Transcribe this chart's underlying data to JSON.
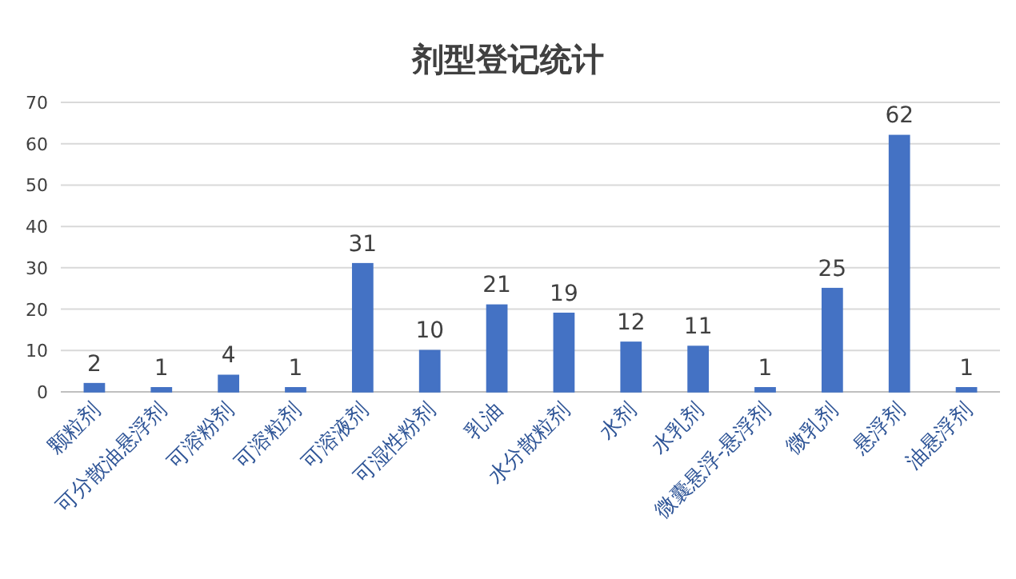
{
  "chart_data": {
    "type": "bar",
    "title": "剂型登记统计",
    "categories": [
      "颗粒剂",
      "可分散油悬浮剂",
      "可溶粉剂",
      "可溶粒剂",
      "可溶液剂",
      "可湿性粉剂",
      "乳油",
      "水分散粒剂",
      "水剂",
      "水乳剂",
      "微囊悬浮-悬浮剂",
      "微乳剂",
      "悬浮剂",
      "油悬浮剂"
    ],
    "values": [
      2,
      1,
      4,
      1,
      31,
      10,
      21,
      19,
      12,
      11,
      1,
      25,
      62,
      1
    ],
    "color": "#4472c4",
    "ylim": [
      0,
      70
    ],
    "yticks": [
      0,
      10,
      20,
      30,
      40,
      50,
      60,
      70
    ],
    "grid": "y",
    "data_labels": true
  }
}
